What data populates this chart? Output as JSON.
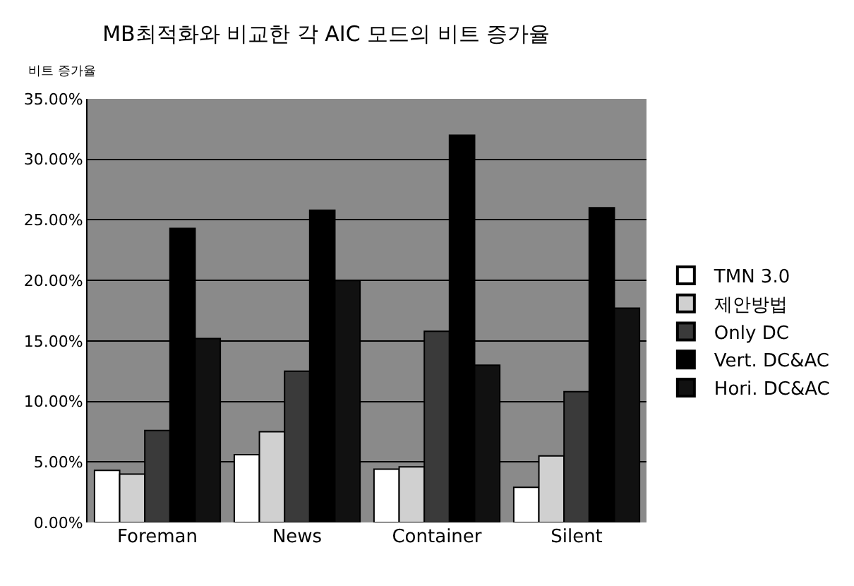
{
  "chart_data": {
    "type": "bar",
    "title": "MB최적화와 비교한 각 AIC 모드의 비트 증가율",
    "ylabel": "비트 증가율",
    "categories": [
      "Foreman",
      "News",
      "Container",
      "Silent"
    ],
    "series": [
      {
        "name": "TMN 3.0",
        "color": "#ffffff",
        "values": [
          4.3,
          5.6,
          4.4,
          2.9
        ]
      },
      {
        "name": "제안방법",
        "color": "#d0d0d0",
        "values": [
          4.0,
          7.5,
          4.6,
          5.5
        ]
      },
      {
        "name": "Only DC",
        "color": "#3a3a3a",
        "values": [
          7.6,
          12.5,
          15.8,
          10.8
        ]
      },
      {
        "name": "Vert. DC&AC",
        "color": "#000000",
        "values": [
          24.3,
          25.8,
          32.0,
          26.0
        ]
      },
      {
        "name": "Hori. DC&AC",
        "color": "#111111",
        "values": [
          15.2,
          20.0,
          13.0,
          17.7
        ]
      }
    ],
    "ylim": [
      0,
      35
    ],
    "yticks": [
      {
        "value": 0,
        "label": "0.00%"
      },
      {
        "value": 5,
        "label": "5.00%"
      },
      {
        "value": 10,
        "label": "10.00%"
      },
      {
        "value": 15,
        "label": "15.00%"
      },
      {
        "value": 20,
        "label": "20.00%"
      },
      {
        "value": 25,
        "label": "25.00%"
      },
      {
        "value": 30,
        "label": "30.00%"
      },
      {
        "value": 35,
        "label": "35.00%"
      }
    ],
    "grid": "y",
    "legend": "right"
  }
}
